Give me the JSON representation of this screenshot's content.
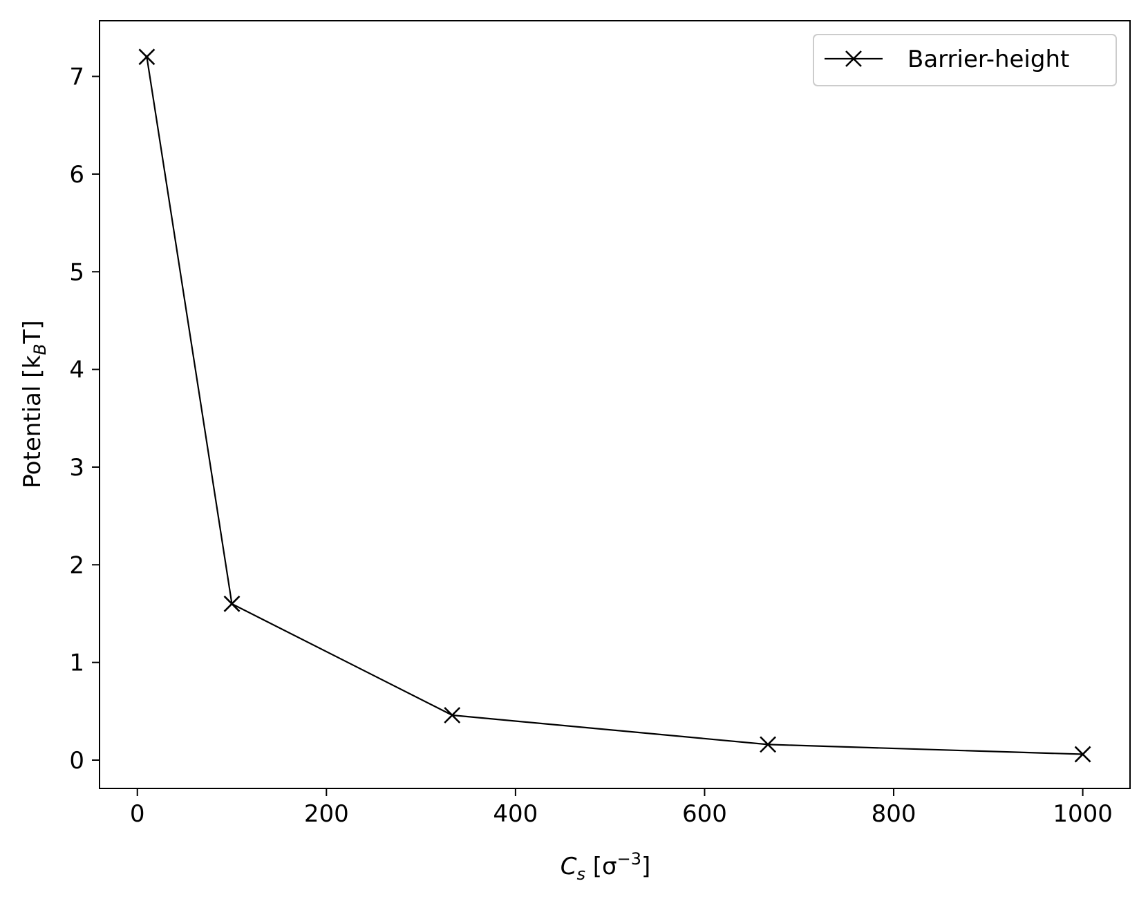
{
  "chart_data": {
    "type": "line",
    "title": "",
    "xlabel": {
      "main": "C",
      "sub": "s",
      "rest": " [σ",
      "sup": "−3",
      "close": "]"
    },
    "ylabel": {
      "main": "Potential [k",
      "sub": "B",
      "close": "T]"
    },
    "xlim": [
      -40,
      1050
    ],
    "ylim": [
      -0.29,
      7.57
    ],
    "xticks": [
      0,
      200,
      400,
      600,
      800,
      1000
    ],
    "yticks": [
      0,
      1,
      2,
      3,
      4,
      5,
      6,
      7
    ],
    "grid": false,
    "legend": "top-right",
    "series": [
      {
        "name": "Barrier-height",
        "color": "#000000",
        "marker": "x",
        "x": [
          10,
          100,
          333,
          667,
          1000
        ],
        "y": [
          7.2,
          1.6,
          0.46,
          0.16,
          0.06
        ]
      }
    ]
  }
}
